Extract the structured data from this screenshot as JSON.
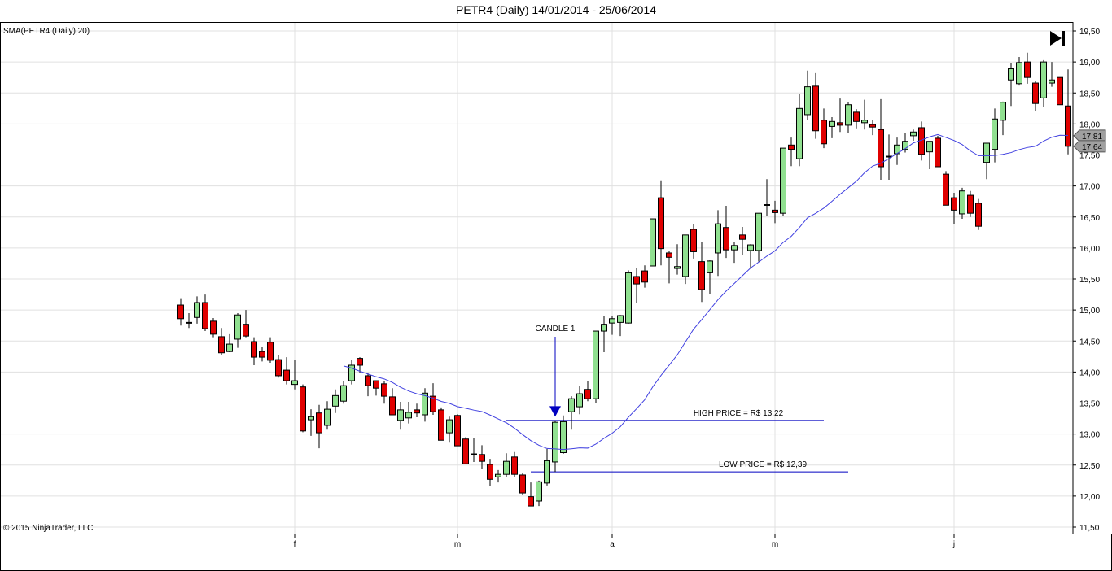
{
  "title": "PETR4 (Daily)  14/01/2014 - 25/06/2014",
  "indicator_label": "SMA(PETR4 (Daily),20)",
  "copyright": "© 2015 NinjaTrader, LLC",
  "colors": {
    "up": "#90e090",
    "down": "#e00000",
    "sma": "#4040e0",
    "annotation": "#0000c0",
    "grid": "#e0e0e0",
    "flag": "#a0a0a0"
  },
  "chart_data": {
    "type": "candlestick",
    "title": "PETR4 (Daily)  14/01/2014 - 25/06/2014",
    "ylim": [
      11.5,
      19.5
    ],
    "y_ticks": [
      "11,50",
      "12,00",
      "12,50",
      "13,00",
      "13,50",
      "14,00",
      "14,50",
      "15,00",
      "15,50",
      "16,00",
      "16,50",
      "17,00",
      "17,50",
      "18,00",
      "18,50",
      "19,00",
      "19,50"
    ],
    "x_ticks": [
      {
        "label": "f",
        "candle": 14
      },
      {
        "label": "m",
        "candle": 34
      },
      {
        "label": "a",
        "candle": 53
      },
      {
        "label": "m",
        "candle": 73
      },
      {
        "label": "j",
        "candle": 95
      }
    ],
    "grid": true,
    "sma_period": 20,
    "ohlc_fields": [
      "open",
      "high",
      "low",
      "close"
    ],
    "candles": [
      [
        15.08,
        15.19,
        14.75,
        14.86
      ],
      [
        14.79,
        14.95,
        14.71,
        14.8
      ],
      [
        14.88,
        15.22,
        14.78,
        15.12
      ],
      [
        15.12,
        15.25,
        14.66,
        14.7
      ],
      [
        14.82,
        14.87,
        14.56,
        14.61
      ],
      [
        14.57,
        14.71,
        14.27,
        14.31
      ],
      [
        14.33,
        14.61,
        14.32,
        14.45
      ],
      [
        14.53,
        14.95,
        14.39,
        14.92
      ],
      [
        14.77,
        15.0,
        14.56,
        14.58
      ],
      [
        14.49,
        14.56,
        14.11,
        14.24
      ],
      [
        14.33,
        14.41,
        14.17,
        14.24
      ],
      [
        14.48,
        14.56,
        14.15,
        14.19
      ],
      [
        14.2,
        14.28,
        13.91,
        13.94
      ],
      [
        14.03,
        14.24,
        13.8,
        13.86
      ],
      [
        13.8,
        14.2,
        13.72,
        13.86
      ],
      [
        13.76,
        13.8,
        13.03,
        13.05
      ],
      [
        13.23,
        13.4,
        12.97,
        13.28
      ],
      [
        13.34,
        13.47,
        12.77,
        13.02
      ],
      [
        13.14,
        13.53,
        13.07,
        13.4
      ],
      [
        13.45,
        13.72,
        13.34,
        13.62
      ],
      [
        13.53,
        13.86,
        13.49,
        13.78
      ],
      [
        13.86,
        14.2,
        13.8,
        14.11
      ],
      [
        14.22,
        14.24,
        13.99,
        14.11
      ],
      [
        13.94,
        13.98,
        13.61,
        13.78
      ],
      [
        13.86,
        13.86,
        13.62,
        13.74
      ],
      [
        13.81,
        13.86,
        13.49,
        13.61
      ],
      [
        13.6,
        13.74,
        13.31,
        13.31
      ],
      [
        13.22,
        13.52,
        13.07,
        13.39
      ],
      [
        13.26,
        13.52,
        13.17,
        13.35
      ],
      [
        13.39,
        13.49,
        13.27,
        13.34
      ],
      [
        13.31,
        13.74,
        13.2,
        13.66
      ],
      [
        13.61,
        13.82,
        13.31,
        13.36
      ],
      [
        13.39,
        13.43,
        12.9,
        12.9
      ],
      [
        13.02,
        13.28,
        12.86,
        13.23
      ],
      [
        13.3,
        13.32,
        12.81,
        12.81
      ],
      [
        12.92,
        12.95,
        12.52,
        12.52
      ],
      [
        12.67,
        12.94,
        12.55,
        12.68
      ],
      [
        12.67,
        12.82,
        12.44,
        12.56
      ],
      [
        12.51,
        12.6,
        12.16,
        12.27
      ],
      [
        12.31,
        12.42,
        12.22,
        12.35
      ],
      [
        12.35,
        12.69,
        12.3,
        12.56
      ],
      [
        12.63,
        12.71,
        12.3,
        12.35
      ],
      [
        12.34,
        12.37,
        12.02,
        12.05
      ],
      [
        11.99,
        12.22,
        11.84,
        11.84
      ],
      [
        11.92,
        12.25,
        11.84,
        12.23
      ],
      [
        12.21,
        12.76,
        12.17,
        12.57
      ],
      [
        12.55,
        13.22,
        12.39,
        13.19
      ],
      [
        12.7,
        13.3,
        12.68,
        13.2
      ],
      [
        13.36,
        13.61,
        13.07,
        13.57
      ],
      [
        13.44,
        13.77,
        13.32,
        13.65
      ],
      [
        13.72,
        13.85,
        13.53,
        13.57
      ],
      [
        13.57,
        14.66,
        13.5,
        14.66
      ],
      [
        14.66,
        14.91,
        14.32,
        14.77
      ],
      [
        14.79,
        14.9,
        14.6,
        14.86
      ],
      [
        14.8,
        14.92,
        14.58,
        14.91
      ],
      [
        14.79,
        15.64,
        14.78,
        15.6
      ],
      [
        15.54,
        15.67,
        15.12,
        15.42
      ],
      [
        15.63,
        15.72,
        15.36,
        15.45
      ],
      [
        15.71,
        16.47,
        15.71,
        16.47
      ],
      [
        16.81,
        17.09,
        15.72,
        15.99
      ],
      [
        15.92,
        15.95,
        15.43,
        15.85
      ],
      [
        15.67,
        16.06,
        15.57,
        15.7
      ],
      [
        15.54,
        16.21,
        15.42,
        16.21
      ],
      [
        16.3,
        16.38,
        15.83,
        15.94
      ],
      [
        15.78,
        16.1,
        15.13,
        15.33
      ],
      [
        15.6,
        15.8,
        15.26,
        15.79
      ],
      [
        15.92,
        16.61,
        15.55,
        16.39
      ],
      [
        16.33,
        16.68,
        15.84,
        15.97
      ],
      [
        15.97,
        16.09,
        15.76,
        16.04
      ],
      [
        16.21,
        16.34,
        15.88,
        16.14
      ],
      [
        15.96,
        16.06,
        15.67,
        16.05
      ],
      [
        15.96,
        16.56,
        15.78,
        16.56
      ],
      [
        16.69,
        17.11,
        16.52,
        16.7
      ],
      [
        16.61,
        16.76,
        16.4,
        16.57
      ],
      [
        16.56,
        17.61,
        16.52,
        17.61
      ],
      [
        17.66,
        17.78,
        17.32,
        17.59
      ],
      [
        17.44,
        18.49,
        17.32,
        18.25
      ],
      [
        18.15,
        18.86,
        18.07,
        18.6
      ],
      [
        18.61,
        18.82,
        17.76,
        17.89
      ],
      [
        18.06,
        18.25,
        17.61,
        17.68
      ],
      [
        17.96,
        18.11,
        17.77,
        18.04
      ],
      [
        18.02,
        18.41,
        17.87,
        17.98
      ],
      [
        17.98,
        18.35,
        17.86,
        18.31
      ],
      [
        18.19,
        18.24,
        17.93,
        18.04
      ],
      [
        18.02,
        18.39,
        17.91,
        18.06
      ],
      [
        17.99,
        18.06,
        17.82,
        17.95
      ],
      [
        17.91,
        18.4,
        17.1,
        17.31
      ],
      [
        17.47,
        17.83,
        17.1,
        17.48
      ],
      [
        17.52,
        17.78,
        17.34,
        17.66
      ],
      [
        17.59,
        17.85,
        17.54,
        17.72
      ],
      [
        17.81,
        17.91,
        17.73,
        17.87
      ],
      [
        17.94,
        18.04,
        17.41,
        17.51
      ],
      [
        17.55,
        17.72,
        17.27,
        17.72
      ],
      [
        17.77,
        17.81,
        17.31,
        17.31
      ],
      [
        17.19,
        17.24,
        16.69,
        16.69
      ],
      [
        16.81,
        16.89,
        16.39,
        16.61
      ],
      [
        16.55,
        16.97,
        16.47,
        16.92
      ],
      [
        16.85,
        16.92,
        16.5,
        16.56
      ],
      [
        16.72,
        16.79,
        16.29,
        16.35
      ],
      [
        17.38,
        17.69,
        17.11,
        17.69
      ],
      [
        17.59,
        18.25,
        17.38,
        18.08
      ],
      [
        18.06,
        18.36,
        17.82,
        18.35
      ],
      [
        18.71,
        18.98,
        18.29,
        18.89
      ],
      [
        18.65,
        19.08,
        18.62,
        18.99
      ],
      [
        19.0,
        19.15,
        18.65,
        18.75
      ],
      [
        18.66,
        18.69,
        18.21,
        18.33
      ],
      [
        18.42,
        19.03,
        18.27,
        19.0
      ],
      [
        18.66,
        19.0,
        18.6,
        18.71
      ],
      [
        18.75,
        18.75,
        18.31,
        18.31
      ],
      [
        18.29,
        18.88,
        17.51,
        17.64
      ]
    ],
    "price_flags": [
      {
        "label": "17,81",
        "series": "SMA"
      },
      {
        "label": "17,64",
        "series": "close"
      }
    ],
    "annotations": {
      "candle_label": {
        "text": "CANDLE 1",
        "candle": 46,
        "price": 14.66
      },
      "high_line": {
        "text": "HIGH PRICE = R$ 13,22",
        "price": 13.22,
        "from_candle": 40,
        "to_candle": 79
      },
      "low_line": {
        "text": "LOW PRICE = R$ 12,39",
        "price": 12.39,
        "from_candle": 43,
        "to_candle": 82
      }
    }
  },
  "icons": {
    "go_to_end": "skip-to-end-icon"
  }
}
